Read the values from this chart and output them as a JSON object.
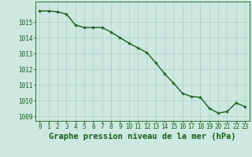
{
  "x": [
    0,
    1,
    2,
    3,
    4,
    5,
    6,
    7,
    8,
    9,
    10,
    11,
    12,
    13,
    14,
    15,
    16,
    17,
    18,
    19,
    20,
    21,
    22,
    23
  ],
  "y": [
    1015.7,
    1015.7,
    1015.65,
    1015.5,
    1014.8,
    1014.65,
    1014.65,
    1014.65,
    1014.35,
    1014.0,
    1013.65,
    1013.35,
    1013.05,
    1012.4,
    1011.7,
    1011.1,
    1010.45,
    1010.25,
    1010.2,
    1009.5,
    1009.2,
    1009.3,
    1009.85,
    1009.6
  ],
  "line_color": "#1a5c1a",
  "marker": "*",
  "marker_color": "#1a5c1a",
  "bg_color": "#cce8e0",
  "grid_color": "#aacfc8",
  "tick_label_color": "#1a5c1a",
  "xlabel": "Graphe pression niveau de la mer (hPa)",
  "xlabel_color": "#1a5c1a",
  "ylim": [
    1008.7,
    1016.3
  ],
  "yticks": [
    1009,
    1010,
    1011,
    1012,
    1013,
    1014,
    1015
  ],
  "xticks": [
    0,
    1,
    2,
    3,
    4,
    5,
    6,
    7,
    8,
    9,
    10,
    11,
    12,
    13,
    14,
    15,
    16,
    17,
    18,
    19,
    20,
    21,
    22,
    23
  ],
  "line_width": 1.0,
  "marker_size": 3,
  "font_size_ticks": 5.5,
  "font_size_xlabel": 7.5,
  "spine_color": "#1a5c1a"
}
